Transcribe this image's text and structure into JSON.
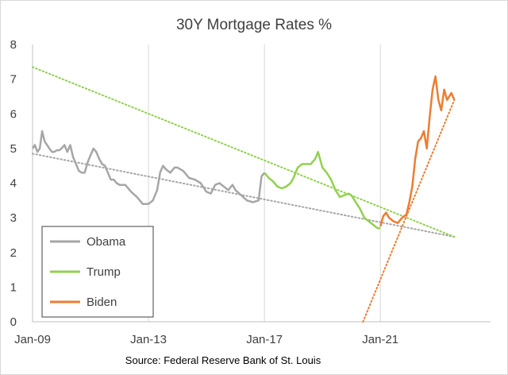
{
  "chart_data": {
    "type": "line",
    "title": "30Y Mortgage Rates %",
    "source": "Source: Federal Reserve Bank of St. Louis",
    "xlabel": "",
    "ylabel": "",
    "xlim": [
      2009.0,
      2024.8
    ],
    "ylim": [
      0,
      8
    ],
    "y_ticks": [
      "0",
      "1",
      "2",
      "3",
      "4",
      "5",
      "6",
      "7",
      "8"
    ],
    "x_ticks": [
      {
        "label": "Jan-09",
        "value": 2009.0
      },
      {
        "label": "Jan-13",
        "value": 2013.0
      },
      {
        "label": "Jan-17",
        "value": 2017.0
      },
      {
        "label": "Jan-21",
        "value": 2021.0
      }
    ],
    "grid": "vertical",
    "legend_position": "bottom-left",
    "series": [
      {
        "name": "Obama",
        "color": "#a6a6a6",
        "x": [
          2009.0,
          2009.08,
          2009.17,
          2009.25,
          2009.33,
          2009.42,
          2009.5,
          2009.58,
          2009.67,
          2009.75,
          2009.83,
          2009.92,
          2010.0,
          2010.1,
          2010.2,
          2010.3,
          2010.4,
          2010.5,
          2010.6,
          2010.7,
          2010.8,
          2010.9,
          2011.0,
          2011.1,
          2011.2,
          2011.3,
          2011.4,
          2011.5,
          2011.6,
          2011.7,
          2011.8,
          2011.9,
          2012.0,
          2012.2,
          2012.4,
          2012.6,
          2012.8,
          2013.0,
          2013.15,
          2013.3,
          2013.4,
          2013.5,
          2013.6,
          2013.75,
          2013.9,
          2014.0,
          2014.2,
          2014.4,
          2014.6,
          2014.8,
          2015.0,
          2015.15,
          2015.3,
          2015.45,
          2015.6,
          2015.75,
          2015.9,
          2016.0,
          2016.2,
          2016.4,
          2016.6,
          2016.8,
          2016.9,
          2017.0
        ],
        "y": [
          5.0,
          5.1,
          4.9,
          5.0,
          5.5,
          5.2,
          5.1,
          5.0,
          4.9,
          4.9,
          4.95,
          4.95,
          5.0,
          5.1,
          4.9,
          5.1,
          4.75,
          4.55,
          4.35,
          4.3,
          4.3,
          4.6,
          4.8,
          5.0,
          4.9,
          4.7,
          4.55,
          4.5,
          4.3,
          4.1,
          4.1,
          4.0,
          3.95,
          3.95,
          3.75,
          3.6,
          3.4,
          3.4,
          3.5,
          3.8,
          4.3,
          4.5,
          4.4,
          4.3,
          4.45,
          4.45,
          4.35,
          4.15,
          4.1,
          4.0,
          3.75,
          3.7,
          3.95,
          4.0,
          3.9,
          3.8,
          3.95,
          3.8,
          3.65,
          3.5,
          3.45,
          3.5,
          4.2,
          4.3
        ]
      },
      {
        "name": "Trump",
        "color": "#92d050",
        "x": [
          2017.0,
          2017.15,
          2017.3,
          2017.45,
          2017.6,
          2017.75,
          2017.9,
          2018.0,
          2018.15,
          2018.3,
          2018.45,
          2018.6,
          2018.75,
          2018.85,
          2019.0,
          2019.15,
          2019.3,
          2019.45,
          2019.6,
          2019.75,
          2019.9,
          2020.0,
          2020.15,
          2020.3,
          2020.45,
          2020.6,
          2020.75,
          2020.9,
          2021.0
        ],
        "y": [
          4.3,
          4.15,
          4.05,
          3.9,
          3.85,
          3.9,
          4.0,
          4.15,
          4.45,
          4.55,
          4.55,
          4.55,
          4.7,
          4.9,
          4.45,
          4.3,
          4.1,
          3.8,
          3.6,
          3.65,
          3.7,
          3.65,
          3.45,
          3.25,
          3.0,
          2.9,
          2.8,
          2.7,
          2.7
        ]
      },
      {
        "name": "Biden",
        "color": "#ed7d31",
        "x": [
          2021.0,
          2021.1,
          2021.2,
          2021.3,
          2021.45,
          2021.6,
          2021.75,
          2021.9,
          2022.0,
          2022.1,
          2022.2,
          2022.3,
          2022.4,
          2022.5,
          2022.6,
          2022.7,
          2022.8,
          2022.9,
          2023.0,
          2023.1,
          2023.2,
          2023.3,
          2023.45,
          2023.55
        ],
        "y": [
          2.75,
          3.05,
          3.15,
          3.0,
          2.9,
          2.85,
          3.0,
          3.1,
          3.45,
          3.9,
          4.7,
          5.2,
          5.3,
          5.5,
          5.0,
          5.9,
          6.7,
          7.08,
          6.4,
          6.1,
          6.7,
          6.4,
          6.6,
          6.4
        ]
      }
    ],
    "trendlines": [
      {
        "series": "Obama",
        "color": "#a6a6a6",
        "x": [
          2009.0,
          2023.55
        ],
        "y": [
          4.85,
          2.45
        ]
      },
      {
        "series": "Trump",
        "color": "#92d050",
        "x": [
          2009.0,
          2023.55
        ],
        "y": [
          7.35,
          2.45
        ]
      },
      {
        "series": "Biden",
        "color": "#ed7d31",
        "x": [
          2020.4,
          2023.55
        ],
        "y": [
          0.0,
          6.4
        ]
      }
    ]
  }
}
